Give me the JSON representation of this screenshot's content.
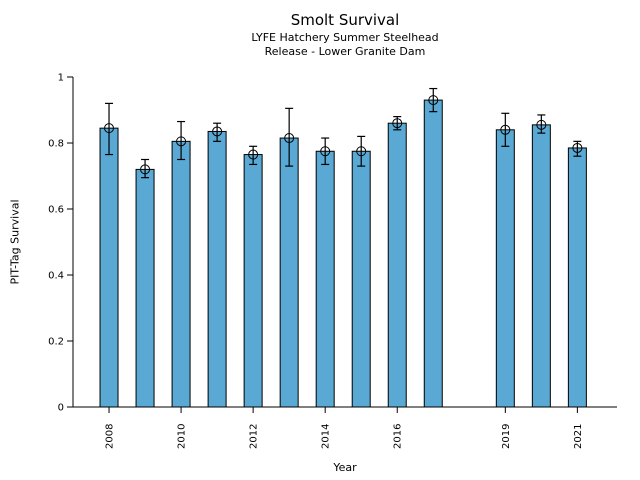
{
  "chart_data": {
    "type": "bar",
    "title": "Smolt Survival",
    "subtitle": [
      "LYFE Hatchery Summer Steelhead",
      "Release - Lower Granite Dam"
    ],
    "xlabel": "Year",
    "ylabel": "PIT-Tag Survival",
    "ylim": [
      0,
      1
    ],
    "xlim": [
      2007,
      2022.1
    ],
    "yticks": [
      0,
      0.2,
      0.4,
      0.6,
      0.8,
      1
    ],
    "ytick_labels": [
      "0",
      "0.2",
      "0.4",
      "0.6",
      "0.8",
      "1"
    ],
    "xticks": [
      2008,
      2010,
      2012,
      2014,
      2016,
      2019,
      2021
    ],
    "xtick_labels": [
      "2008",
      "2010",
      "2012",
      "2014",
      "2016",
      "2019",
      "2021"
    ],
    "categories": [
      2008,
      2009,
      2010,
      2011,
      2012,
      2013,
      2014,
      2015,
      2016,
      2017,
      2019,
      2020,
      2021
    ],
    "values": [
      0.845,
      0.72,
      0.805,
      0.835,
      0.765,
      0.815,
      0.775,
      0.775,
      0.86,
      0.93,
      0.84,
      0.855,
      0.785
    ],
    "error_low": [
      0.765,
      0.695,
      0.75,
      0.805,
      0.735,
      0.73,
      0.735,
      0.73,
      0.84,
      0.895,
      0.79,
      0.83,
      0.76
    ],
    "error_high": [
      0.92,
      0.75,
      0.865,
      0.86,
      0.79,
      0.905,
      0.815,
      0.82,
      0.88,
      0.965,
      0.89,
      0.885,
      0.805
    ],
    "marker": "open-circle",
    "bar_color": "#59a9d4",
    "bar_edge_color": "#000000",
    "error_color": "#000000",
    "axis_color": "#000000",
    "grid": false,
    "legend": null
  }
}
